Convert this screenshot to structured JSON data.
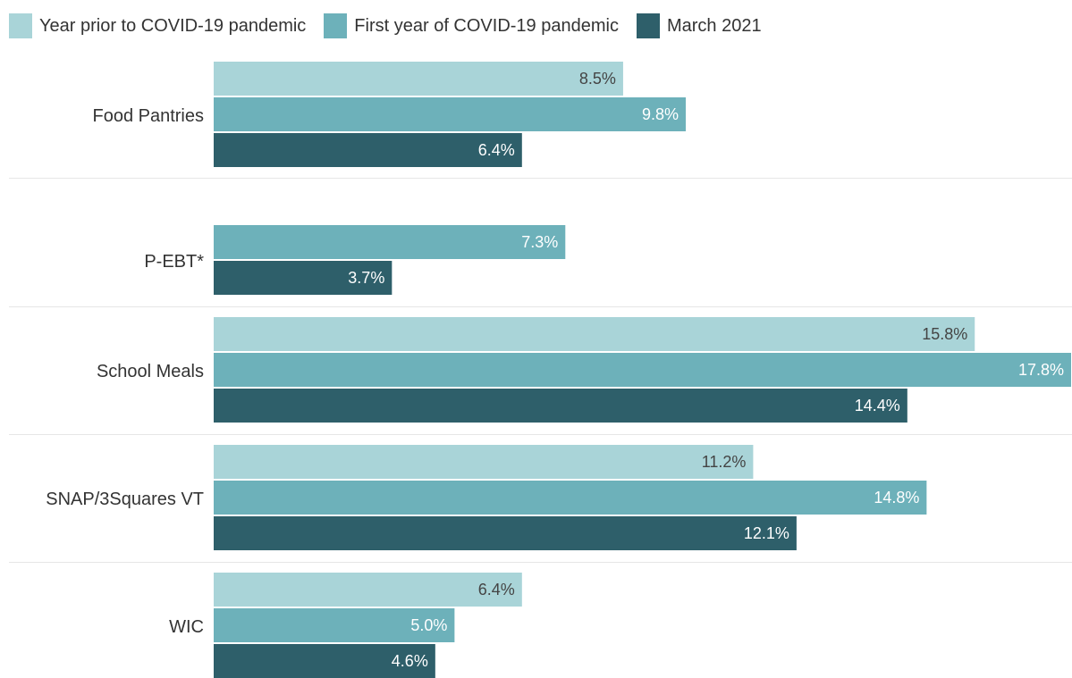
{
  "chart_data": {
    "type": "bar",
    "orientation": "horizontal",
    "categories": [
      "Food Pantries",
      "P-EBT*",
      "School Meals",
      "SNAP/3Squares VT",
      "WIC"
    ],
    "series": [
      {
        "name": "Year prior to COVID-19 pandemic",
        "color": "#a9d4d8",
        "values": [
          8.5,
          null,
          15.8,
          11.2,
          6.4
        ],
        "labels": [
          "8.5%",
          "",
          "15.8%",
          "11.2%",
          "6.4%"
        ],
        "label_color": "#444444"
      },
      {
        "name": "First year of COVID-19 pandemic",
        "color": "#6db1ba",
        "values": [
          9.8,
          7.3,
          17.8,
          14.8,
          5.0
        ],
        "labels": [
          "9.8%",
          "7.3%",
          "17.8%",
          "14.8%",
          "5.0%"
        ],
        "label_color": "#ffffff"
      },
      {
        "name": "March 2021",
        "color": "#2e5f6a",
        "values": [
          6.4,
          3.7,
          14.4,
          12.1,
          4.6
        ],
        "labels": [
          "6.4%",
          "3.7%",
          "14.4%",
          "12.1%",
          "4.6%"
        ],
        "label_color": "#ffffff"
      }
    ],
    "xlim": [
      0,
      17.8
    ],
    "legend_position": "top-left",
    "grid": false
  }
}
